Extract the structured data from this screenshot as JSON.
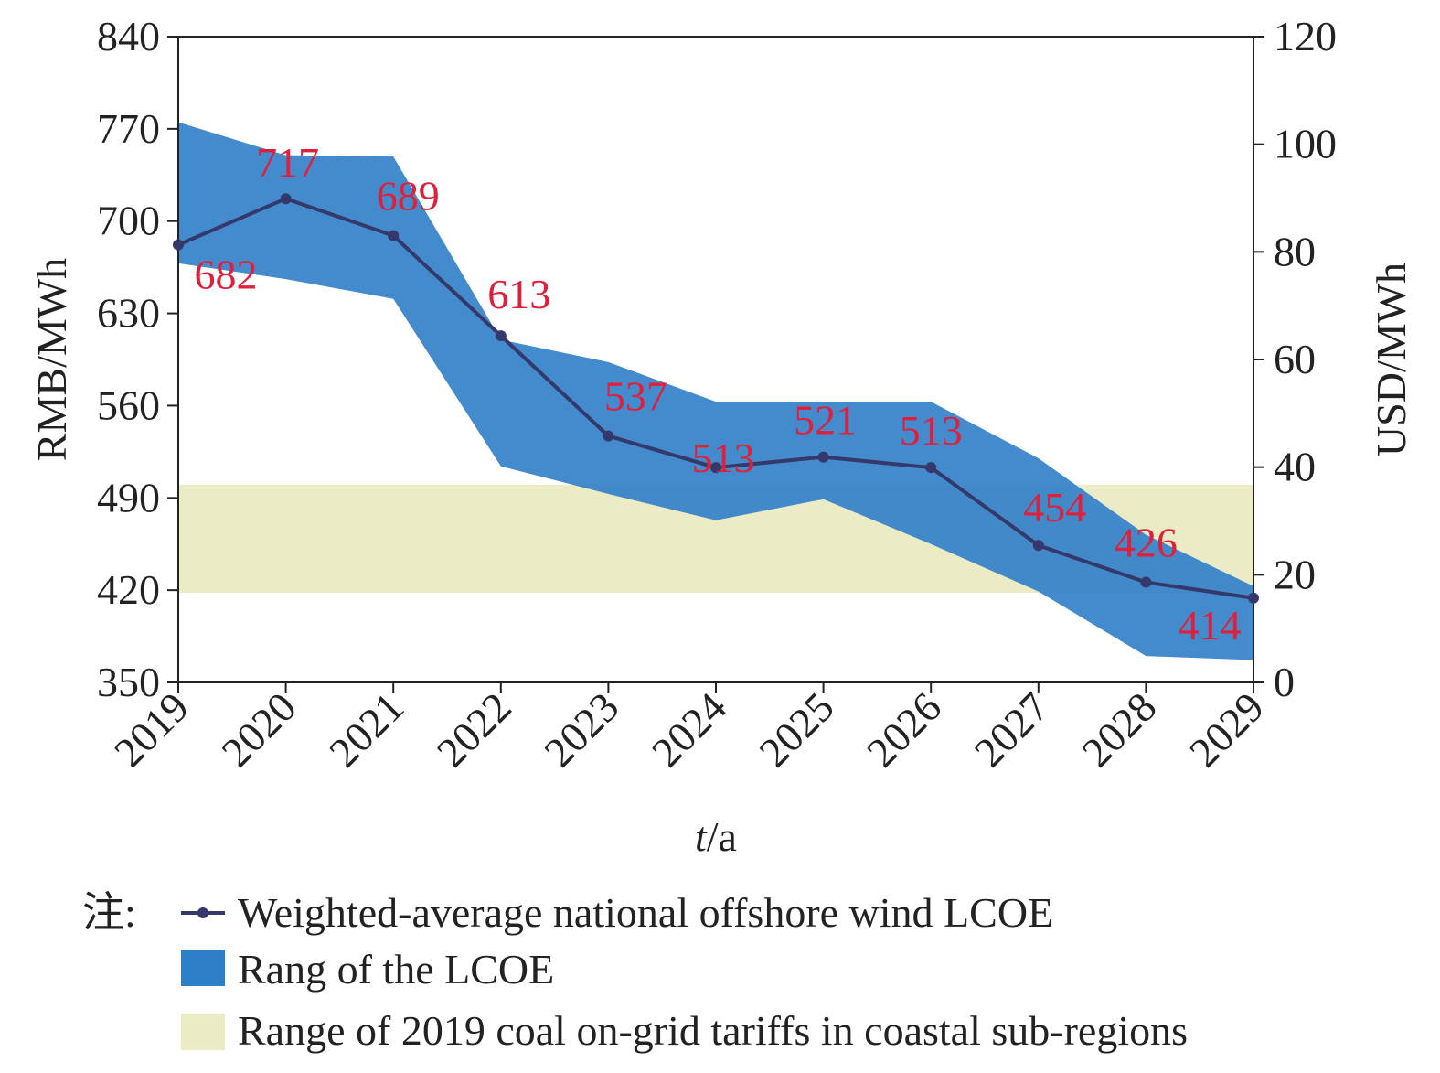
{
  "chart_data": {
    "type": "line",
    "categories": [
      "2019",
      "2020",
      "2021",
      "2022",
      "2023",
      "2024",
      "2025",
      "2026",
      "2027",
      "2028",
      "2029"
    ],
    "series": [
      {
        "name": "Weighted-average national offshore wind LCOE",
        "values": [
          682,
          717,
          689,
          613,
          537,
          513,
          521,
          513,
          454,
          426,
          414
        ],
        "labels": [
          "682",
          "717",
          "689",
          "613",
          "537",
          "513",
          "521",
          "513",
          "454",
          "426",
          "414"
        ],
        "color": "#34386b"
      }
    ],
    "range_band": {
      "name": "Rang of the LCOE",
      "upper": [
        775,
        750,
        749,
        610,
        593,
        563,
        563,
        563,
        520,
        462,
        423
      ],
      "lower": [
        668,
        656,
        641,
        514,
        493,
        473,
        489,
        455,
        419,
        370,
        367
      ],
      "color": "#2f7ec8"
    },
    "coal_band": {
      "name": "Range of 2019 coal on-grid tariffs in coastal sub-regions",
      "low": 418,
      "high": 500,
      "color": "#ebebc6"
    },
    "ylim_left": [
      350,
      840
    ],
    "yticks_left": [
      "840",
      "770",
      "700",
      "630",
      "560",
      "490",
      "420",
      "350"
    ],
    "ylim_right": [
      0,
      120
    ],
    "yticks_right": [
      "120",
      "100",
      "80",
      "60",
      "40",
      "20",
      "0"
    ],
    "xlabel_italic": "t",
    "xlabel_rest": "/a",
    "ylabel_left": "RMB/MWh",
    "ylabel_right": "USD/MWh",
    "legend_prefix": "注:",
    "grid": false
  }
}
